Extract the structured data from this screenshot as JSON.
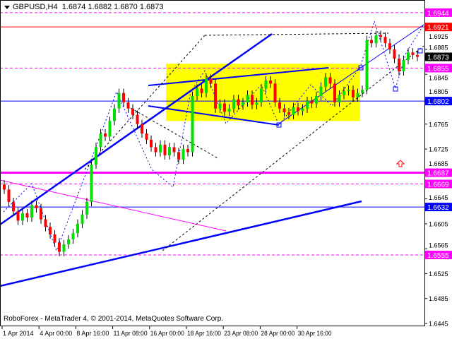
{
  "header": {
    "symbol": "GBPUSD,H4",
    "open": "1.6874",
    "high": "1.6882",
    "low": "1.6870",
    "close": "1.6873"
  },
  "footer": {
    "copyright": "RoboForex - MetaTrader 4, © 2001-2014, MetaQuotes Software Corp."
  },
  "colors": {
    "bull": "#00e000",
    "bear": "#ff0000",
    "trend": "#0000ff",
    "zone": "#ffff00",
    "level_magenta": "#ff00ff",
    "level_red": "#ff0000",
    "current": "#000000"
  },
  "chart_data": {
    "type": "candlestick",
    "symbol": "GBPUSD",
    "timeframe": "H4",
    "ylim": [
      1.6425,
      1.696
    ],
    "y_ticks": [
      "1.6925",
      "1.6885",
      "1.6845",
      "1.6805",
      "1.6765",
      "1.6725",
      "1.6685",
      "1.6645",
      "1.6605",
      "1.6565",
      "1.6525",
      "1.6485",
      "1.6445"
    ],
    "x_ticks": [
      "1 Apr 2014",
      "4 Apr 00:00",
      "8 Apr 16:00",
      "11 Apr 08:00",
      "16 Apr 00:00",
      "18 Apr 16:00",
      "23 Apr 08:00",
      "28 Apr 00:00",
      "30 Apr 16:00"
    ],
    "closes": [
      1.666,
      1.664,
      1.6625,
      1.661,
      1.6622,
      1.6615,
      1.6635,
      1.663,
      1.6612,
      1.66,
      1.6588,
      1.6575,
      1.656,
      1.6572,
      1.658,
      1.659,
      1.6605,
      1.662,
      1.664,
      1.67,
      1.6728,
      1.675,
      1.6745,
      1.677,
      1.679,
      1.6815,
      1.68,
      1.679,
      1.678,
      1.6765,
      1.675,
      1.674,
      1.6728,
      1.672,
      1.6732,
      1.6715,
      1.6728,
      1.672,
      1.6708,
      1.6725,
      1.672,
      1.681,
      1.6822,
      1.6815,
      1.6838,
      1.683,
      1.679,
      1.6798,
      1.6785,
      1.679,
      1.6805,
      1.6795,
      1.68,
      1.6812,
      1.6796,
      1.68,
      1.6822,
      1.6835,
      1.683,
      1.68,
      1.679,
      1.6784,
      1.678,
      1.6792,
      1.6786,
      1.679,
      1.6802,
      1.6798,
      1.681,
      1.6825,
      1.684,
      1.683,
      1.68,
      1.6812,
      1.6818,
      1.682,
      1.6808,
      1.6815,
      1.682,
      1.69,
      1.6895,
      1.6908,
      1.6905,
      1.6895,
      1.6885,
      1.687,
      1.685,
      1.6868,
      1.688,
      1.6876,
      1.6873
    ],
    "levels": [
      {
        "price": 1.6944,
        "label": "1.6944",
        "color": "#ff00ff",
        "style": "dashed"
      },
      {
        "price": 1.6921,
        "label": "1.6921",
        "color": "#ff0000",
        "style": "solid"
      },
      {
        "price": 1.6873,
        "label": "1.6873",
        "color": "#000000",
        "style": "current"
      },
      {
        "price": 1.6855,
        "label": "1.6855",
        "color": "#ff00ff",
        "style": "dashed"
      },
      {
        "price": 1.6802,
        "label": "1.6802",
        "color": "#0000ff",
        "style": "solid"
      },
      {
        "price": 1.6687,
        "label": "1.6687",
        "color": "#ff00ff",
        "style": "thick"
      },
      {
        "price": 1.6669,
        "label": "1.6669",
        "color": "#ff00ff",
        "style": "dashed"
      },
      {
        "price": 1.6632,
        "label": "1.6632",
        "color": "#0000ff",
        "style": "solid"
      },
      {
        "price": 1.6555,
        "label": "1.6555",
        "color": "#ff00ff",
        "style": "dashed"
      }
    ],
    "zone": {
      "from": 1.677,
      "to": 1.6862
    }
  }
}
